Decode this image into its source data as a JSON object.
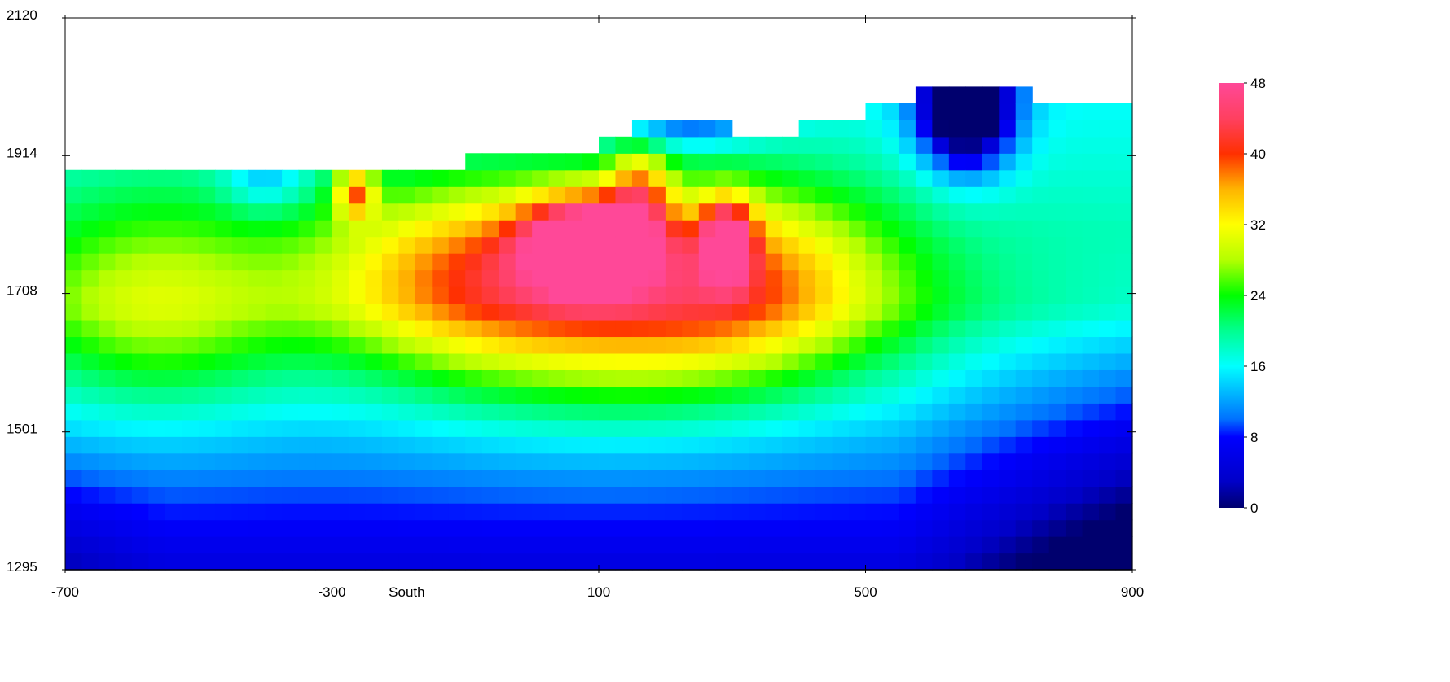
{
  "chart_data": {
    "type": "heatmap",
    "title": "",
    "xlabel": "South",
    "ylabel": "",
    "xlim": [
      -700,
      900
    ],
    "ylim": [
      1295,
      2120
    ],
    "x_ticks": [
      -700,
      -300,
      100,
      500,
      900
    ],
    "x_tick_labels": [
      "-700",
      "-300",
      "100",
      "500",
      "900"
    ],
    "y_ticks": [
      2120,
      1914,
      1708,
      1501,
      1295
    ],
    "y_tick_labels": [
      "2120",
      "1914",
      "1708",
      "1501",
      "1295"
    ],
    "grid": false,
    "grid_cols": 64,
    "colorbar": {
      "range": [
        0,
        48
      ],
      "ticks": [
        0,
        8,
        16,
        24,
        32,
        40,
        48
      ],
      "tick_labels": [
        "0",
        "8",
        "16",
        "24",
        "32",
        "40",
        "48"
      ],
      "placement": "right",
      "stops": [
        {
          "value": 0,
          "color": "#00006e"
        },
        {
          "value": 3,
          "color": "#0000c8"
        },
        {
          "value": 8,
          "color": "#0000ff"
        },
        {
          "value": 10,
          "color": "#0070ff"
        },
        {
          "value": 16,
          "color": "#00ffff"
        },
        {
          "value": 20,
          "color": "#00ff90"
        },
        {
          "value": 24,
          "color": "#00ff00"
        },
        {
          "value": 28,
          "color": "#b4ff00"
        },
        {
          "value": 32,
          "color": "#ffff00"
        },
        {
          "value": 36,
          "color": "#ffb400"
        },
        {
          "value": 40,
          "color": "#ff3000"
        },
        {
          "value": 44,
          "color": "#ff4060"
        },
        {
          "value": 48,
          "color": "#ff4898"
        }
      ]
    },
    "surface_profile": [
      {
        "x": -700,
        "y": 1892
      },
      {
        "x": -650,
        "y": 1892
      },
      {
        "x": -640,
        "y": 1905
      },
      {
        "x": -600,
        "y": 1892
      },
      {
        "x": -550,
        "y": 1905
      },
      {
        "x": -300,
        "y": 1905
      },
      {
        "x": -100,
        "y": 1905
      },
      {
        "x": -50,
        "y": 1920
      },
      {
        "x": 100,
        "y": 1930
      },
      {
        "x": 150,
        "y": 1955
      },
      {
        "x": 250,
        "y": 1965
      },
      {
        "x": 300,
        "y": 1955
      },
      {
        "x": 400,
        "y": 1955
      },
      {
        "x": 450,
        "y": 1965
      },
      {
        "x": 500,
        "y": 1980
      },
      {
        "x": 550,
        "y": 2000
      },
      {
        "x": 600,
        "y": 2015
      },
      {
        "x": 650,
        "y": 2030
      },
      {
        "x": 700,
        "y": 2015
      },
      {
        "x": 800,
        "y": 1998
      },
      {
        "x": 900,
        "y": 1985
      }
    ],
    "anomalies": [
      {
        "x": 85,
        "y": 1786,
        "rx": 95,
        "ry": 68,
        "value": 24
      },
      {
        "x": 292,
        "y": 1788,
        "rx": 38,
        "ry": 60,
        "value": 21
      },
      {
        "x": -265,
        "y": 1860,
        "rx": 30,
        "ry": 38,
        "value": 16
      },
      {
        "x": 160,
        "y": 1860,
        "rx": 45,
        "ry": 80,
        "value": 12
      },
      {
        "x": -80,
        "y": 1755,
        "rx": 240,
        "ry": 130,
        "value": 14
      },
      {
        "x": 310,
        "y": 1740,
        "rx": 230,
        "ry": 140,
        "value": 14
      },
      {
        "x": 100,
        "y": 1660,
        "rx": 360,
        "ry": 160,
        "value": 12
      },
      {
        "x": -570,
        "y": 1690,
        "rx": 200,
        "ry": 170,
        "value": 10
      },
      {
        "x": 650,
        "y": 1990,
        "rx": 70,
        "ry": 90,
        "value": -26
      },
      {
        "x": 230,
        "y": 1955,
        "rx": 120,
        "ry": 30,
        "value": -8
      },
      {
        "x": -400,
        "y": 1880,
        "rx": 60,
        "ry": 50,
        "value": -6
      }
    ],
    "background_model": {
      "value_top": 16,
      "value_mid": 20,
      "value_bottom": 5,
      "mid_elevation": 1690,
      "edge_drop_right": 10,
      "edge_drop_left": 3
    }
  }
}
